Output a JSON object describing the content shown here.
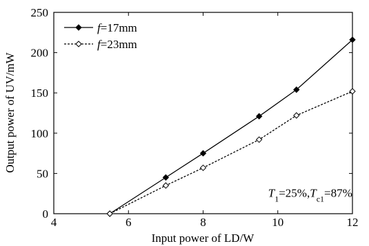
{
  "chart_data": {
    "type": "line",
    "xlabel": "Input power of LD/W",
    "ylabel": "Output power of UV/mW",
    "xlim": [
      4,
      12
    ],
    "ylim": [
      0,
      250
    ],
    "xticks": [
      4,
      6,
      8,
      10,
      12
    ],
    "yticks": [
      0,
      50,
      100,
      150,
      200,
      250
    ],
    "xtick_labels": [
      "4",
      "6",
      "8",
      "10",
      "12"
    ],
    "ytick_labels": [
      "0",
      "50",
      "100",
      "150",
      "200",
      "250"
    ],
    "grid": false,
    "legend_position": "top-left",
    "series": [
      {
        "name": "f=17mm",
        "name_italic": "f",
        "name_rest": "=17mm",
        "line_style": "solid",
        "marker": "filled-diamond",
        "color": "#000000",
        "x": [
          5.5,
          7.0,
          8.0,
          9.5,
          10.5,
          12.0
        ],
        "y": [
          0,
          45,
          75,
          121,
          154,
          216
        ]
      },
      {
        "name": "f=23mm",
        "name_italic": "f",
        "name_rest": "=23mm",
        "line_style": "dashed",
        "marker": "open-diamond",
        "color": "#000000",
        "x": [
          5.5,
          7.0,
          8.0,
          9.5,
          10.5,
          12.0
        ],
        "y": [
          0,
          35,
          57,
          92,
          122,
          152
        ]
      }
    ],
    "annotation": {
      "text": "T1=25%,Tc1=87%",
      "parts": [
        {
          "t": "T",
          "style": "italic"
        },
        {
          "t": "1",
          "style": "sub"
        },
        {
          "t": "=25%,",
          "style": "normal"
        },
        {
          "t": "T",
          "style": "italic"
        },
        {
          "t": "c1",
          "style": "sub"
        },
        {
          "t": "=87%",
          "style": "normal"
        }
      ],
      "x": 10.0,
      "y": 20
    }
  }
}
